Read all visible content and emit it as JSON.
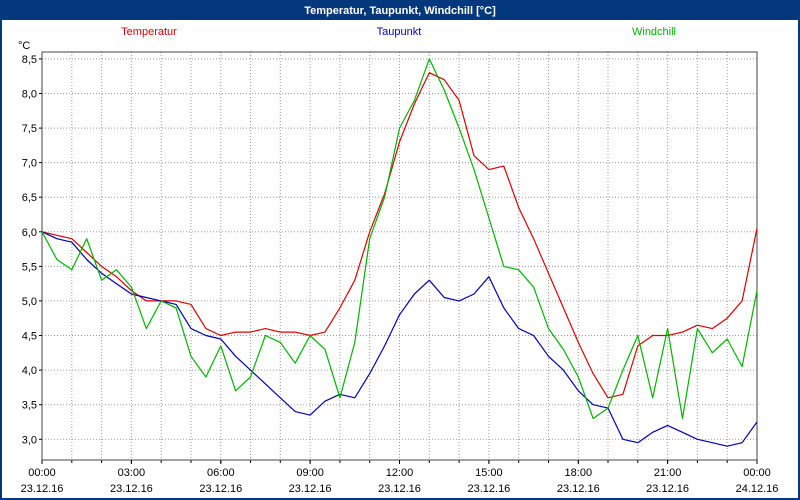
{
  "window": {
    "title": "Temperatur, Taupunkt, Windchill [°C]"
  },
  "colors": {
    "titlebar_bg": "#04387c",
    "titlebar_text": "#ffffff",
    "window_border": "#04387c",
    "grid": "#999999",
    "axis": "#000000"
  },
  "chart_data": {
    "type": "line",
    "title": "Temperatur, Taupunkt, Windchill [°C]",
    "xlabel": "",
    "ylabel": "°C",
    "grid": true,
    "legend_position": "top",
    "xlim": [
      0,
      24
    ],
    "ylim": [
      2.7,
      8.6
    ],
    "x_start": 0,
    "x_step_hours": 0.5,
    "y_ticks": [
      {
        "value": 8.5,
        "label": "8,5"
      },
      {
        "value": 8.0,
        "label": "8,0"
      },
      {
        "value": 7.5,
        "label": "7,5"
      },
      {
        "value": 7.0,
        "label": "7,0"
      },
      {
        "value": 6.5,
        "label": "6,5"
      },
      {
        "value": 6.0,
        "label": "6,0"
      },
      {
        "value": 5.5,
        "label": "5,5"
      },
      {
        "value": 5.0,
        "label": "5,0"
      },
      {
        "value": 4.5,
        "label": "4,5"
      },
      {
        "value": 4.0,
        "label": "4,0"
      },
      {
        "value": 3.5,
        "label": "3,5"
      },
      {
        "value": 3.0,
        "label": "3,0"
      }
    ],
    "x_ticks": [
      {
        "hour": 0,
        "time": "00:00",
        "date": "23.12.16"
      },
      {
        "hour": 3,
        "time": "03:00",
        "date": "23.12.16"
      },
      {
        "hour": 6,
        "time": "06:00",
        "date": "23.12.16"
      },
      {
        "hour": 9,
        "time": "09:00",
        "date": "23.12.16"
      },
      {
        "hour": 12,
        "time": "12:00",
        "date": "23.12.16"
      },
      {
        "hour": 15,
        "time": "15:00",
        "date": "23.12.16"
      },
      {
        "hour": 18,
        "time": "18:00",
        "date": "23.12.16"
      },
      {
        "hour": 21,
        "time": "21:00",
        "date": "23.12.16"
      },
      {
        "hour": 24,
        "time": "00:00",
        "date": "24.12.16"
      }
    ],
    "series": [
      {
        "name": "Temperatur",
        "color": "#dd0000",
        "values": [
          6.0,
          5.95,
          5.9,
          5.7,
          5.5,
          5.35,
          5.15,
          5.0,
          5.0,
          5.0,
          4.95,
          4.6,
          4.5,
          4.55,
          4.55,
          4.6,
          4.55,
          4.55,
          4.5,
          4.55,
          4.9,
          5.3,
          6.0,
          6.55,
          7.3,
          7.85,
          8.3,
          8.2,
          7.9,
          7.1,
          6.9,
          6.95,
          6.35,
          5.9,
          5.4,
          4.9,
          4.4,
          3.95,
          3.6,
          3.65,
          4.35,
          4.5,
          4.5,
          4.55,
          4.65,
          4.6,
          4.75,
          5.0,
          6.05
        ]
      },
      {
        "name": "Taupunkt",
        "color": "#0000bb",
        "values": [
          6.0,
          5.9,
          5.85,
          5.6,
          5.4,
          5.25,
          5.1,
          5.05,
          5.0,
          4.95,
          4.6,
          4.5,
          4.45,
          4.2,
          4.0,
          3.8,
          3.6,
          3.4,
          3.35,
          3.55,
          3.65,
          3.6,
          3.95,
          4.35,
          4.8,
          5.1,
          5.3,
          5.05,
          5.0,
          5.1,
          5.35,
          4.9,
          4.6,
          4.5,
          4.2,
          4.0,
          3.7,
          3.5,
          3.45,
          3.0,
          2.95,
          3.1,
          3.2,
          3.1,
          3.0,
          2.95,
          2.9,
          2.95,
          3.25
        ]
      },
      {
        "name": "Windchill",
        "color": "#00b400",
        "values": [
          6.0,
          5.6,
          5.45,
          5.9,
          5.3,
          5.45,
          5.2,
          4.6,
          5.0,
          4.9,
          4.2,
          3.9,
          4.35,
          3.7,
          3.9,
          4.5,
          4.4,
          4.1,
          4.5,
          4.3,
          3.6,
          4.4,
          5.9,
          6.5,
          7.5,
          7.9,
          8.5,
          8.05,
          7.5,
          6.9,
          6.2,
          5.5,
          5.45,
          5.2,
          4.6,
          4.3,
          3.9,
          3.3,
          3.45,
          4.0,
          4.5,
          3.6,
          4.6,
          3.3,
          4.6,
          4.25,
          4.45,
          4.05,
          5.15
        ]
      }
    ]
  }
}
